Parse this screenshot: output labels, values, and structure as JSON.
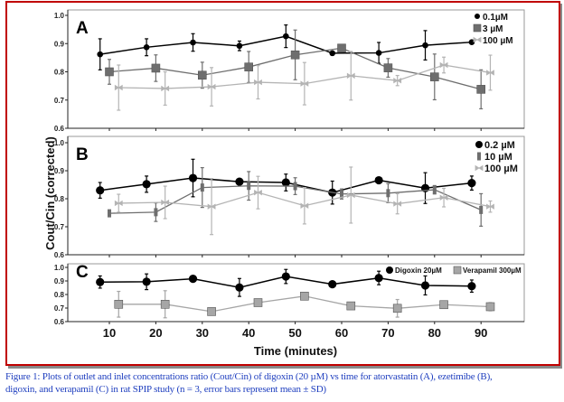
{
  "chart_data": [
    {
      "type": "line",
      "panel_label": "A",
      "xlabel": "Time (minutes)",
      "ylabel": "Cout/Cin (corrected)",
      "ylim": [
        0.6,
        1.0
      ],
      "yticks": [
        "0.6",
        "0.7",
        "0.8",
        "0.9",
        "1.0"
      ],
      "xlim": [
        1,
        99
      ],
      "grid": false,
      "legend_position": "top-right",
      "series": [
        {
          "name": "0.1µM",
          "marker": "circle-small",
          "color": "#000000",
          "x": [
            8,
            18,
            28,
            38,
            48,
            58,
            68,
            78,
            88
          ],
          "y": [
            0.862,
            0.887,
            0.904,
            0.892,
            0.926,
            0.866,
            0.867,
            0.894,
            0.905
          ],
          "err": [
            0.055,
            0.03,
            0.031,
            0.017,
            0.04,
            0.0,
            0.037,
            0.052,
            0.0
          ]
        },
        {
          "name": "3 µM",
          "marker": "square",
          "color": "#6e6e6e",
          "x": [
            10,
            20,
            30,
            40,
            50,
            60,
            70,
            80,
            90
          ],
          "y": [
            0.8,
            0.813,
            0.788,
            0.817,
            0.86,
            0.884,
            0.814,
            0.782,
            0.738
          ],
          "err": [
            0.044,
            0.047,
            0.046,
            0.055,
            0.088,
            0.008,
            0.033,
            0.081,
            0.069
          ]
        },
        {
          "name": "100 µM",
          "marker": "bowtie",
          "color": "#b4b4b4",
          "x": [
            12,
            22,
            32,
            42,
            52,
            62,
            72,
            82,
            92
          ],
          "y": [
            0.744,
            0.741,
            0.747,
            0.763,
            0.758,
            0.786,
            0.769,
            0.824,
            0.797
          ],
          "err": [
            0.08,
            0.059,
            0.068,
            0.059,
            0.075,
            0.086,
            0.018,
            0.028,
            0.062
          ]
        }
      ]
    },
    {
      "type": "line",
      "panel_label": "B",
      "ylim": [
        0.6,
        1.0
      ],
      "yticks": [
        "0.6",
        "0.7",
        "0.8",
        "0.9",
        "1.0"
      ],
      "xlim": [
        1,
        99
      ],
      "grid": false,
      "legend_position": "top-right",
      "series": [
        {
          "name": "0.2 µM",
          "marker": "circle-large",
          "color": "#000000",
          "x": [
            8,
            18,
            28,
            38,
            48,
            58,
            68,
            78,
            88
          ],
          "y": [
            0.83,
            0.852,
            0.874,
            0.861,
            0.858,
            0.822,
            0.866,
            0.838,
            0.856
          ],
          "err": [
            0.028,
            0.029,
            0.067,
            0.0,
            0.03,
            0.041,
            0.0,
            0.055,
            0.025
          ]
        },
        {
          "name": "10 µM",
          "marker": "bar",
          "color": "#6e6e6e",
          "x": [
            10,
            20,
            30,
            40,
            50,
            60,
            70,
            80,
            90
          ],
          "y": [
            0.748,
            0.752,
            0.84,
            0.846,
            0.845,
            0.817,
            0.82,
            0.832,
            0.76
          ],
          "err": [
            0.01,
            0.033,
            0.071,
            0.051,
            0.03,
            0.018,
            0.034,
            0.015,
            0.058
          ]
        },
        {
          "name": "100 µM",
          "marker": "bowtie",
          "color": "#b4b4b4",
          "x": [
            12,
            22,
            32,
            42,
            52,
            62,
            72,
            82,
            92
          ],
          "y": [
            0.784,
            0.787,
            0.772,
            0.822,
            0.775,
            0.813,
            0.782,
            0.804,
            0.772
          ],
          "err": [
            0.032,
            0.058,
            0.1,
            0.058,
            0.065,
            0.1,
            0.036,
            0.033,
            0.02
          ]
        }
      ]
    },
    {
      "type": "line",
      "panel_label": "C",
      "ylim": [
        0.6,
        1.0
      ],
      "yticks": [
        "0.6",
        "0.7",
        "0.8",
        "0.9",
        "1.0"
      ],
      "xlim": [
        1,
        99
      ],
      "xticks": [
        "10",
        "20",
        "30",
        "40",
        "50",
        "60",
        "70",
        "80",
        "90"
      ],
      "grid": false,
      "legend_position": "top-right",
      "series": [
        {
          "name": "Digoxin 20µM",
          "marker": "circle-large",
          "color": "#000000",
          "x": [
            8,
            18,
            28,
            38,
            48,
            58,
            68,
            78,
            88
          ],
          "y": [
            0.892,
            0.894,
            0.916,
            0.852,
            0.933,
            0.876,
            0.922,
            0.867,
            0.862
          ],
          "err": [
            0.045,
            0.058,
            0.02,
            0.066,
            0.052,
            0.0,
            0.05,
            0.07,
            0.045
          ]
        },
        {
          "name": "Verapamil 300µM",
          "marker": "square",
          "color": "#a6a6a6",
          "x": [
            12,
            22,
            32,
            42,
            52,
            62,
            72,
            82,
            92
          ],
          "y": [
            0.728,
            0.728,
            0.674,
            0.74,
            0.788,
            0.716,
            0.698,
            0.725,
            0.71
          ],
          "err": [
            0.095,
            0.1,
            0.0,
            0.0,
            0.0,
            0.015,
            0.065,
            0.0,
            0.03
          ]
        }
      ]
    }
  ],
  "caption": {
    "line1": "Figure 1: Plots of outlet and inlet concentrations ratio (Cout/Cin) of digoxin (20 µM) vs time for atorvastatin (A), ezetimibe (B),",
    "line2": "digoxin, and verapamil (C) in rat SPIP study (n = 3, error bars represent mean ± SD)"
  },
  "colors": {
    "frame_border": "#c00000",
    "caption_text": "#1f3fbf"
  }
}
